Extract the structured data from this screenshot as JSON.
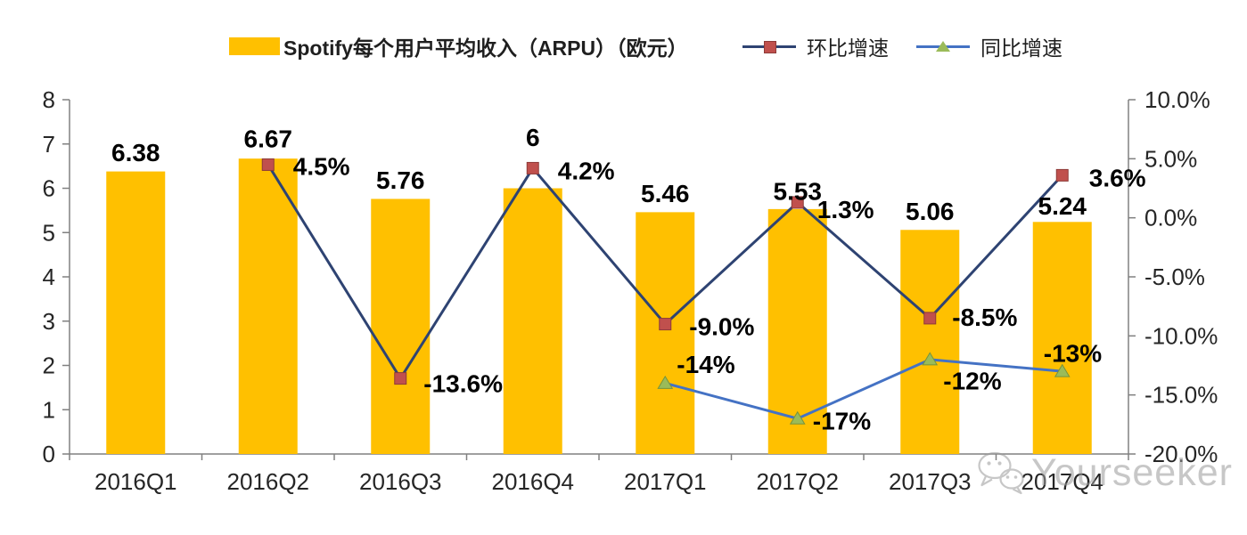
{
  "page": {
    "background": "#ffffff"
  },
  "legend": {
    "items": [
      {
        "label": "Spotify每个用户平均收入（ARPU）（欧元）"
      },
      {
        "label": "环比增速"
      },
      {
        "label": "同比增速"
      }
    ]
  },
  "watermark": {
    "text": "Yourseeker",
    "icon": "wechat-icon"
  },
  "chart_data": {
    "type": "bar",
    "subtype": "combo bar + two lines, dual axis",
    "title": "",
    "categories": [
      "2016Q1",
      "2016Q2",
      "2016Q3",
      "2016Q4",
      "2017Q1",
      "2017Q2",
      "2017Q3",
      "2017Q4"
    ],
    "series": [
      {
        "name": "Spotify每个用户平均收入（ARPU）（欧元）",
        "type": "bar",
        "axis": "left",
        "color": "#FFC000",
        "values": [
          6.38,
          6.67,
          5.76,
          6,
          5.46,
          5.53,
          5.06,
          5.24
        ],
        "labels": [
          "6.38",
          "6.67",
          "5.76",
          "6",
          "5.46",
          "5.53",
          "5.06",
          "5.24"
        ],
        "label_dy": [
          -21,
          -22,
          -21,
          -57,
          -21,
          -20,
          -21,
          -18
        ]
      },
      {
        "name": "环比增速",
        "type": "line",
        "axis": "right",
        "color": "#2E4372",
        "marker": "square",
        "marker_color": "#C0504D",
        "marker_stroke": "#8E3B38",
        "values": [
          null,
          4.5,
          -13.6,
          4.2,
          -9.0,
          1.3,
          -8.5,
          3.6
        ],
        "labels": [
          null,
          "4.5%",
          "-13.6%",
          "4.2%",
          "-9.0%",
          "1.3%",
          "-8.5%",
          "3.6%"
        ],
        "label_offsets": [
          null,
          [
            28,
            2
          ],
          [
            26,
            6
          ],
          [
            28,
            3
          ],
          [
            27,
            3
          ],
          [
            22,
            8
          ],
          [
            25,
            -1
          ],
          [
            30,
            3
          ]
        ]
      },
      {
        "name": "同比增速",
        "type": "line",
        "axis": "right",
        "color": "#4472C4",
        "marker": "triangle",
        "marker_color": "#9BBB59",
        "marker_stroke": "#77933C",
        "values": [
          null,
          null,
          null,
          null,
          -14,
          -17,
          -12,
          -13
        ],
        "labels": [
          null,
          null,
          null,
          null,
          "-14%",
          "-17%",
          "-12%",
          "-13%"
        ],
        "label_offsets": [
          null,
          null,
          null,
          null,
          [
            13,
            -21
          ],
          [
            17,
            3
          ],
          [
            15,
            24
          ],
          [
            -21,
            -20
          ]
        ]
      }
    ],
    "left_axis": {
      "min": 0,
      "max": 8,
      "tick_values": [
        0,
        1,
        2,
        3,
        4,
        5,
        6,
        7,
        8
      ],
      "tick_labels": [
        "0",
        "1",
        "2",
        "3",
        "4",
        "5",
        "6",
        "7",
        "8"
      ]
    },
    "right_axis": {
      "min": -20,
      "max": 10,
      "tick_values": [
        10,
        5,
        0,
        -5,
        -10,
        -15,
        -20
      ],
      "tick_labels": [
        "10.0%",
        "5.0%",
        "0.0%",
        "-5.0%",
        "-10.0%",
        "-15.0%",
        "-20.0%"
      ]
    },
    "legend_position": "top",
    "grid": false,
    "axis_color": "#808080",
    "tick_label_color": "#262626",
    "data_label_color": "#000000"
  }
}
